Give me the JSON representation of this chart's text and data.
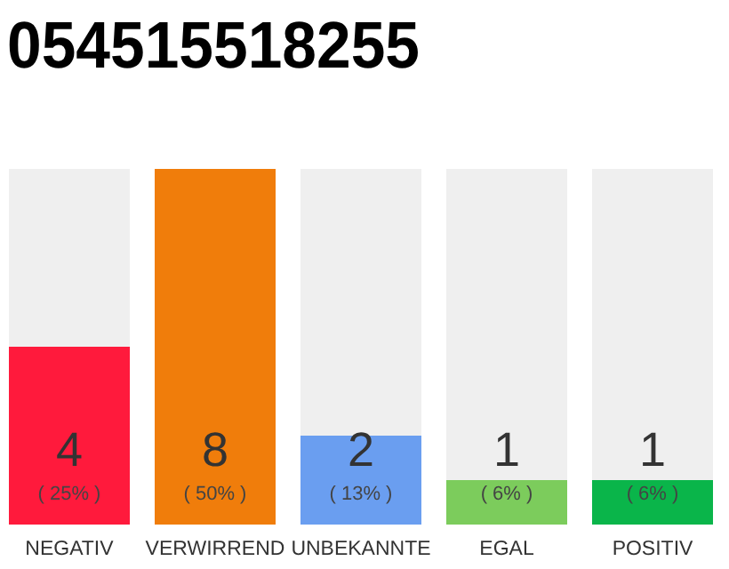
{
  "chart_data": {
    "type": "bar",
    "title": "054515518255",
    "categories": [
      "NEGATIV",
      "VERWIRREND",
      "UNBEKANNTE",
      "EGAL",
      "POSITIV"
    ],
    "values": [
      4,
      8,
      2,
      1,
      1
    ],
    "colors": [
      "#ff1a3c",
      "#f07d0b",
      "#6a9ef0",
      "#7ccc5c",
      "#0ab54a"
    ],
    "ylim": [
      0,
      8
    ],
    "data_labels": true,
    "tick_labels": "x",
    "annotations": [
      "( 25% )",
      "( 50% )",
      "( 13% )",
      "( 6% )",
      "( 6% )"
    ]
  }
}
